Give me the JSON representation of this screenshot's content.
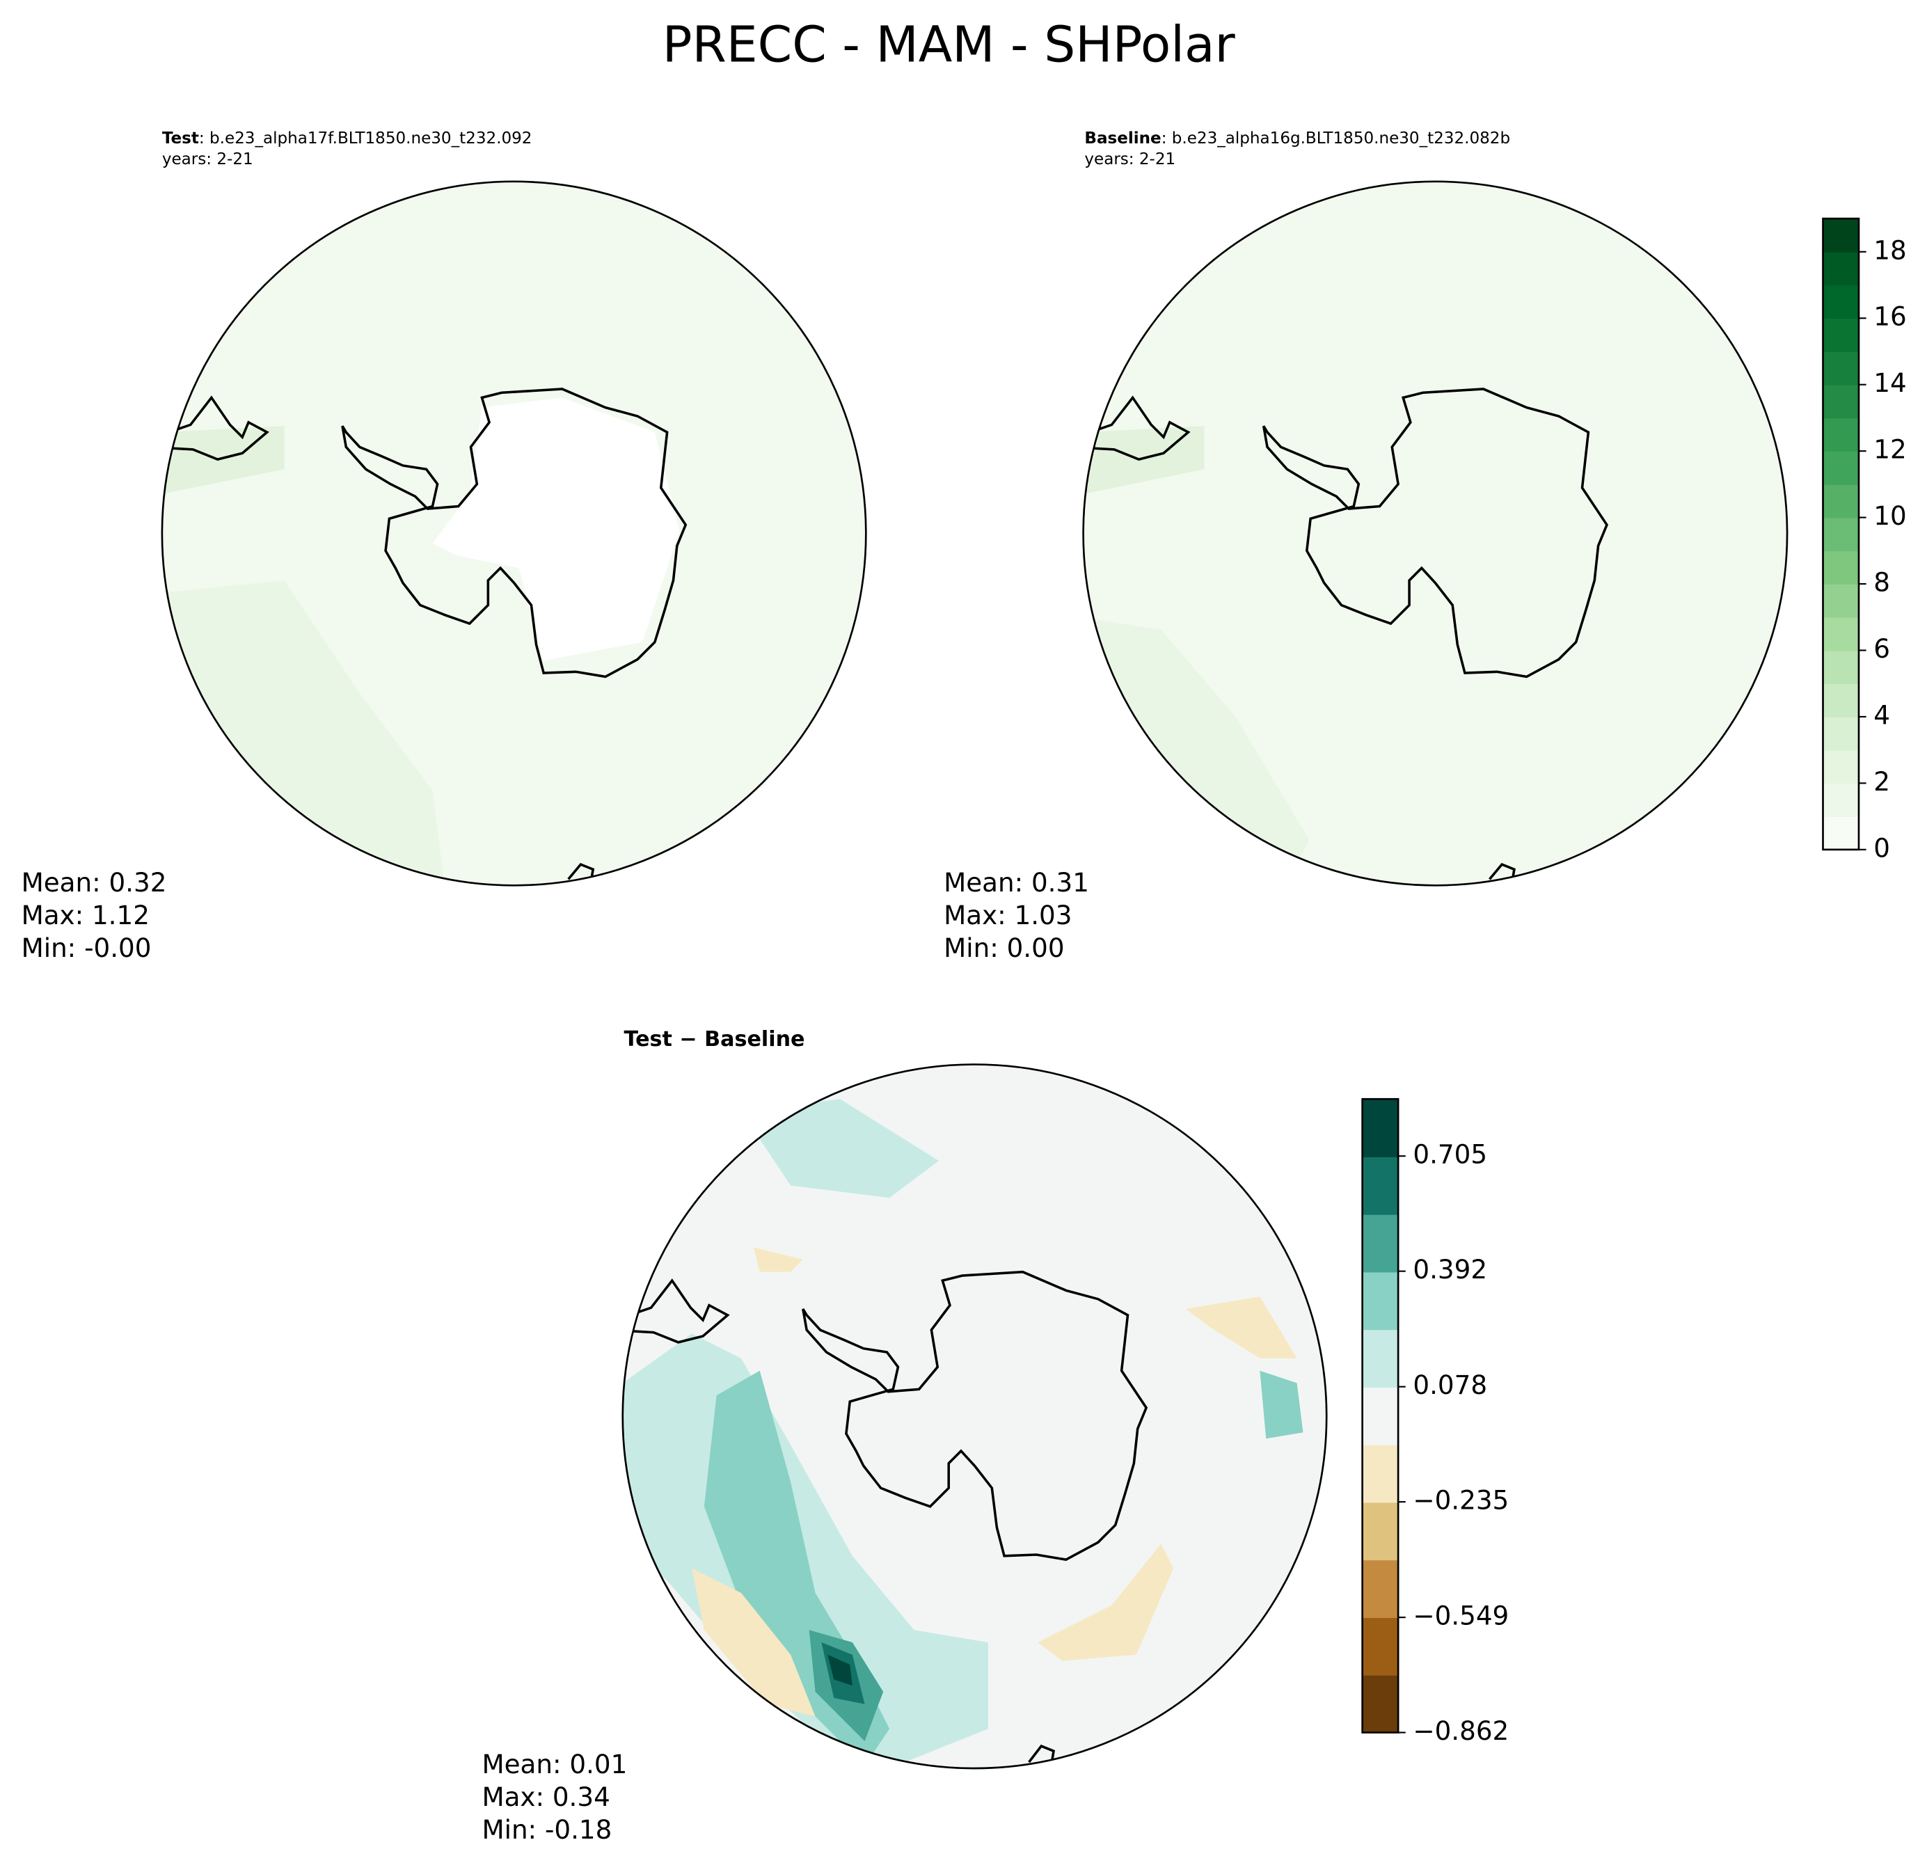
{
  "title": "PRECC - MAM - SHPolar",
  "panels": [
    {
      "name": "Test",
      "case": ": b.e23_alpha17f.BLT1850.ne30_t232.092",
      "years": "years: 2-21",
      "stats": [
        "Mean:  0.32",
        "Max:  1.12",
        "Min: -0.00"
      ]
    },
    {
      "name": "Baseline",
      "case": ": b.e23_alpha16g.BLT1850.ne30_t232.082b",
      "years": "years: 2-21",
      "stats": [
        "Mean:  0.31",
        "Max:  1.03",
        "Min:  0.00"
      ]
    },
    {
      "name": "Test − Baseline",
      "stats": [
        "Mean:  0.01",
        "Max:  0.34",
        "Min: -0.18"
      ]
    }
  ],
  "colorbars": [
    {
      "lim": [
        0,
        19
      ],
      "ticks": [
        0,
        2,
        4,
        6,
        8,
        10,
        12,
        14,
        16,
        18
      ],
      "colors": [
        "#f7fcf5",
        "#eef8ea",
        "#e5f5e0",
        "#d9f0d3",
        "#c9eac2",
        "#b9e3b2",
        "#a7dba0",
        "#94d190",
        "#7fc77e",
        "#6bbc74",
        "#56b166",
        "#41a45b",
        "#329b51",
        "#238b45",
        "#17803c",
        "#0a7433",
        "#00682a",
        "#005a24",
        "#00441b"
      ]
    },
    {
      "lim": [
        -0.862,
        0.86
      ],
      "ticks": [
        {
          "value": -0.862,
          "label": "−0.862"
        },
        {
          "value": -0.549,
          "label": "−0.549"
        },
        {
          "value": -0.235,
          "label": "−0.235"
        },
        0.078,
        0.392,
        0.705
      ],
      "colors": [
        "#6b3d0a",
        "#9b5e14",
        "#c48a3f",
        "#dfc27d",
        "#f6e8c3",
        "#f3f5f4",
        "#c7eae5",
        "#89d1c4",
        "#45a494",
        "#137367",
        "#01463c"
      ]
    }
  ]
}
